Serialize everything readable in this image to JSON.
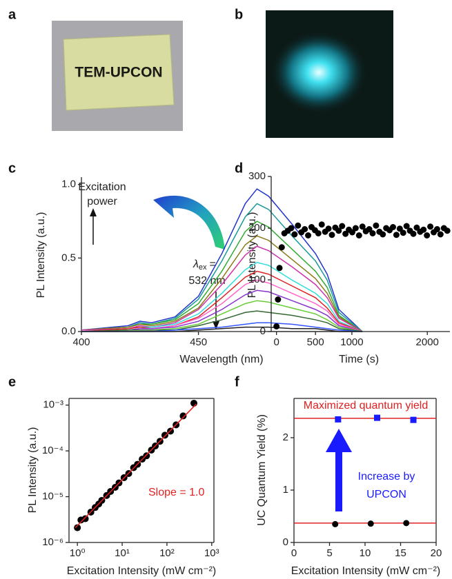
{
  "photos": [
    {
      "panel": "a",
      "text": "TEM-UPCON"
    },
    {
      "panel": "b"
    }
  ],
  "chart_data": [
    {
      "type": "line",
      "panel": "c",
      "x_label": "Wavelength (nm)",
      "y_label": "PL Intensity (a.u.)",
      "annotations": [
        "Excitation",
        "power",
        "λ",
        "ex",
        "=",
        "532 nm"
      ],
      "xlim": [
        400,
        520
      ],
      "ylim": [
        0,
        1.05
      ],
      "xticks": [
        400,
        450,
        500
      ],
      "yticks": [
        {
          "value": 0,
          "label": "0.0"
        },
        0.5,
        {
          "value": 1,
          "label": "1.0"
        }
      ],
      "x": [
        400,
        420,
        425,
        430,
        440,
        450,
        460,
        470,
        475,
        480,
        490,
        500,
        505,
        510,
        520
      ],
      "series": [
        {
          "color": "#2233cc",
          "values": [
            0.01,
            0.04,
            0.07,
            0.06,
            0.1,
            0.24,
            0.53,
            0.87,
            0.97,
            0.92,
            0.73,
            0.53,
            0.39,
            0.15,
            0
          ]
        },
        {
          "color": "#1a9a9a",
          "values": [
            0.01,
            0.03,
            0.06,
            0.05,
            0.09,
            0.22,
            0.48,
            0.78,
            0.87,
            0.83,
            0.65,
            0.48,
            0.35,
            0.13,
            0
          ]
        },
        {
          "color": "#33aa33",
          "values": [
            0.01,
            0.03,
            0.05,
            0.05,
            0.08,
            0.19,
            0.41,
            0.68,
            0.75,
            0.71,
            0.56,
            0.41,
            0.3,
            0.11,
            0
          ]
        },
        {
          "color": "#8a7a1a",
          "values": [
            0.01,
            0.03,
            0.05,
            0.04,
            0.07,
            0.16,
            0.36,
            0.59,
            0.65,
            0.62,
            0.49,
            0.36,
            0.26,
            0.1,
            0
          ]
        },
        {
          "color": "#cc33aa",
          "values": [
            0.01,
            0.02,
            0.04,
            0.03,
            0.06,
            0.15,
            0.32,
            0.52,
            0.58,
            0.55,
            0.44,
            0.32,
            0.23,
            0.09,
            0
          ]
        },
        {
          "color": "#33dddd",
          "values": [
            0,
            0.02,
            0.03,
            0.03,
            0.05,
            0.12,
            0.26,
            0.42,
            0.47,
            0.45,
            0.35,
            0.26,
            0.19,
            0.07,
            0
          ]
        },
        {
          "color": "#dd2222",
          "values": [
            0,
            0.02,
            0.03,
            0.02,
            0.04,
            0.1,
            0.23,
            0.37,
            0.41,
            0.39,
            0.31,
            0.23,
            0.16,
            0.06,
            0
          ]
        },
        {
          "color": "#ff66cc",
          "values": [
            0,
            0.01,
            0.02,
            0.02,
            0.04,
            0.09,
            0.19,
            0.32,
            0.35,
            0.33,
            0.26,
            0.19,
            0.14,
            0.05,
            0
          ]
        },
        {
          "color": "#8833cc",
          "values": [
            0,
            0.01,
            0.02,
            0.02,
            0.03,
            0.07,
            0.15,
            0.25,
            0.28,
            0.27,
            0.21,
            0.15,
            0.11,
            0.04,
            0
          ]
        },
        {
          "color": "#66cc33",
          "values": [
            0,
            0.01,
            0.01,
            0.01,
            0.02,
            0.05,
            0.12,
            0.19,
            0.21,
            0.2,
            0.16,
            0.12,
            0.08,
            0.03,
            0
          ]
        },
        {
          "color": "#336633",
          "values": [
            0,
            0.01,
            0.01,
            0.01,
            0.01,
            0.04,
            0.08,
            0.13,
            0.14,
            0.13,
            0.11,
            0.08,
            0.06,
            0.02,
            0
          ]
        },
        {
          "color": "#3355ff",
          "values": [
            0,
            0,
            0,
            0,
            0.01,
            0.02,
            0.03,
            0.05,
            0.06,
            0.06,
            0.05,
            0.03,
            0.02,
            0.01,
            0
          ]
        },
        {
          "color": "#222222",
          "values": [
            0,
            0,
            0,
            0,
            0,
            0.01,
            0.02,
            0.03,
            0.03,
            0.03,
            0.02,
            0.02,
            0.01,
            0,
            0
          ]
        }
      ]
    },
    {
      "type": "scatter",
      "panel": "d",
      "x_label": "Time (s)",
      "y_label": "PL Intensity (a.u.)",
      "xlim": [
        -70,
        2300
      ],
      "ylim": [
        0,
        300
      ],
      "xticks": [
        0,
        1000,
        2000
      ],
      "yticks": [
        0,
        100,
        200,
        300
      ],
      "series": [
        {
          "color": "#000000",
          "marker": "circle",
          "x": [
            0,
            20,
            40,
            70,
            105,
            150,
            195,
            240,
            285,
            330,
            375,
            420,
            465,
            510,
            555,
            600,
            645,
            690,
            735,
            780,
            825,
            870,
            915,
            960,
            1005,
            1050,
            1095,
            1140,
            1185,
            1230,
            1275,
            1320,
            1365,
            1410,
            1455,
            1500,
            1545,
            1590,
            1635,
            1680,
            1725,
            1770,
            1815,
            1860,
            1905,
            1950,
            1995,
            2040,
            2085,
            2130,
            2175,
            2220,
            2265
          ],
          "values": [
            10,
            62,
            123,
            163,
            190,
            195,
            200,
            188,
            205,
            192,
            198,
            186,
            202,
            196,
            190,
            207,
            193,
            199,
            187,
            201,
            195,
            204,
            189,
            197,
            192,
            200,
            186,
            203,
            194,
            198,
            190,
            205,
            193,
            188,
            200,
            196,
            202,
            187,
            199,
            191,
            204,
            195,
            189,
            201,
            193,
            197,
            186,
            203,
            192,
            198,
            188,
            200,
            195
          ]
        }
      ]
    },
    {
      "type": "scatter",
      "panel": "e",
      "x_label": "Excitation Intensity (mW cm⁻²)",
      "y_label": "PL Intensity (a.u.)",
      "annotations": [
        "Slope = 1.0"
      ],
      "box": true,
      "xlog": true,
      "ylog": true,
      "xlim": [
        0.65,
        1120
      ],
      "ylim": [
        1e-06,
        0.0014
      ],
      "xticks": [
        {
          "value": 1,
          "label": "10⁰"
        },
        {
          "value": 10,
          "label": "10¹"
        },
        {
          "value": 100,
          "label": "10²"
        },
        {
          "value": 1000,
          "label": "10³"
        }
      ],
      "yticks": [
        {
          "value": 1e-06,
          "label": "10⁻⁶"
        },
        {
          "value": 1e-05,
          "label": "10⁻⁵"
        },
        {
          "value": 0.0001,
          "label": "10⁻⁴"
        },
        {
          "value": 0.001,
          "label": "10⁻³"
        }
      ],
      "series": [
        {
          "color": "#000000",
          "marker": "circle",
          "x": [
            1,
            1.2,
            1.5,
            2,
            2.5,
            3,
            3.5,
            4.5,
            5.5,
            7,
            8.5,
            11,
            14,
            18,
            22,
            28,
            35,
            45,
            55,
            70,
            90,
            120,
            160,
            230,
            400
          ],
          "values": [
            2.1e-06,
            3.1e-06,
            3.3e-06,
            4.6e-06,
            5.8e-06,
            6.9e-06,
            8.3e-06,
            1.06e-05,
            1.3e-05,
            1.6e-05,
            2e-05,
            2.6e-05,
            3.2e-05,
            4.3e-05,
            5.1e-05,
            6.6e-05,
            7.8e-05,
            0.000104,
            0.000128,
            0.000162,
            0.00022,
            0.00027,
            0.00037,
            0.00058,
            0.0011
          ]
        },
        {
          "color": "#e02020",
          "style": "line",
          "x": [
            0.9,
            450
          ],
          "values": [
            2.1e-06,
            0.00105
          ]
        }
      ]
    },
    {
      "type": "scatter",
      "panel": "f",
      "x_label": "Excitation Intensity (mW cm⁻²)",
      "y_label": "UC Quantum Yield (%)",
      "annotations": [
        "Maximized quantum yield",
        "Increase by",
        "UPCON"
      ],
      "box": true,
      "xlim": [
        0,
        20
      ],
      "ylim": [
        0,
        2.75
      ],
      "xticks": [
        0,
        5,
        10,
        15,
        20
      ],
      "yticks": [
        0,
        1,
        2
      ],
      "series": [
        {
          "color": "#e02020",
          "style": "line",
          "x": [
            0,
            20
          ],
          "values": [
            0.37,
            0.37
          ]
        },
        {
          "color": "#e02020",
          "style": "line",
          "x": [
            0,
            20
          ],
          "values": [
            2.37,
            2.37
          ]
        },
        {
          "color": "#000000",
          "marker": "circle",
          "x": [
            5.8,
            10.8,
            15.8
          ],
          "values": [
            0.35,
            0.36,
            0.37
          ]
        },
        {
          "color": "#1a1aff",
          "marker": "square",
          "x": [
            6.2,
            11.7,
            16.8
          ],
          "values": [
            2.35,
            2.38,
            2.34
          ]
        }
      ]
    }
  ]
}
